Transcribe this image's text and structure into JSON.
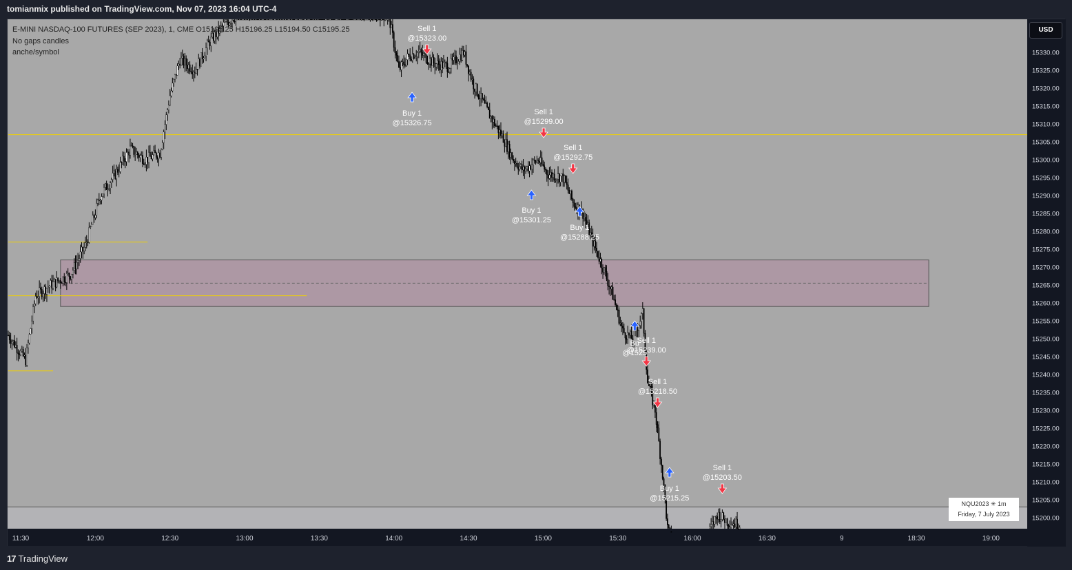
{
  "header": {
    "published_line": "tomianmix published on TradingView.com, Nov 07, 2023 16:04 UTC-4"
  },
  "legend": {
    "line1": "E-MINI NASDAQ-100 FUTURES (SEP 2023), 1, CME  O15195.25  H15196.25  L15194.50  C15195.25",
    "line2": "No gaps candles",
    "line3": "anche/symbol"
  },
  "currency_badge": "USD",
  "info_box": {
    "symbol": "NQU2023 ✳ 1m",
    "date": "Friday, 7 July 2023"
  },
  "footer": {
    "logo_mark": "17",
    "brand": "TradingView"
  },
  "colors": {
    "plot_bg": "#a8a8a8",
    "candle": "#000000",
    "buy_arrow": "#2962ff",
    "sell_arrow": "#f23645",
    "level_line": "#f0d000",
    "zone_fill": "#b08aa0"
  },
  "chart_data": {
    "type": "candlestick",
    "symbol": "E-MINI NASDAQ-100 FUTURES (SEP 2023)",
    "interval": "1",
    "ylim": [
      15195,
      15340
    ],
    "y_ticks": [
      15200,
      15205,
      15210,
      15215,
      15220,
      15225,
      15230,
      15235,
      15240,
      15245,
      15250,
      15255,
      15260,
      15265,
      15270,
      15275,
      15280,
      15285,
      15290,
      15295,
      15300,
      15305,
      15310,
      15315,
      15320,
      15325,
      15330
    ],
    "y_tick_labels": [
      "15200.00",
      "15205.00",
      "15210.00",
      "15215.00",
      "15220.00",
      "15225.00",
      "15230.00",
      "15235.00",
      "15240.00",
      "15245.00",
      "15250.00",
      "15255.00",
      "15260.00",
      "15265.00",
      "15270.00",
      "15275.00",
      "15280.00",
      "15285.00",
      "15290.00",
      "15295.00",
      "15300.00",
      "15305.00",
      "15310.00",
      "15315.00",
      "15320.00",
      "15325.00",
      "15330.00"
    ],
    "x_range_minutes": [
      685,
      1160
    ],
    "x_ticks": [
      {
        "t": 690,
        "label": "11:30"
      },
      {
        "t": 720,
        "label": "12:00"
      },
      {
        "t": 750,
        "label": "12:30"
      },
      {
        "t": 780,
        "label": "13:00"
      },
      {
        "t": 810,
        "label": "13:30"
      },
      {
        "t": 840,
        "label": "14:00"
      },
      {
        "t": 870,
        "label": "14:30"
      },
      {
        "t": 900,
        "label": "15:00"
      },
      {
        "t": 930,
        "label": "15:30"
      },
      {
        "t": 960,
        "label": "16:00"
      },
      {
        "t": 990,
        "label": "16:30"
      },
      {
        "t": 1020,
        "label": "9"
      },
      {
        "t": 1050,
        "label": "18:30"
      },
      {
        "t": 1080,
        "label": "19:00"
      }
    ],
    "price_path": [
      [
        685,
        15251
      ],
      [
        692,
        15244
      ],
      [
        696,
        15262
      ],
      [
        702,
        15265
      ],
      [
        710,
        15268
      ],
      [
        716,
        15276
      ],
      [
        722,
        15290
      ],
      [
        728,
        15296
      ],
      [
        734,
        15303
      ],
      [
        740,
        15300
      ],
      [
        746,
        15302
      ],
      [
        750,
        15318
      ],
      [
        754,
        15328
      ],
      [
        760,
        15325
      ],
      [
        766,
        15333
      ],
      [
        772,
        15338
      ],
      [
        780,
        15342
      ],
      [
        788,
        15343
      ],
      [
        800,
        15345
      ],
      [
        810,
        15344
      ],
      [
        820,
        15343
      ],
      [
        832,
        15341
      ],
      [
        838,
        15340
      ],
      [
        842,
        15325
      ],
      [
        846,
        15329
      ],
      [
        850,
        15330
      ],
      [
        856,
        15327
      ],
      [
        862,
        15326
      ],
      [
        868,
        15330
      ],
      [
        872,
        15321
      ],
      [
        878,
        15313
      ],
      [
        884,
        15306
      ],
      [
        888,
        15300
      ],
      [
        892,
        15297
      ],
      [
        898,
        15300
      ],
      [
        902,
        15296
      ],
      [
        908,
        15295
      ],
      [
        912,
        15288
      ],
      [
        916,
        15285
      ],
      [
        920,
        15277
      ],
      [
        924,
        15270
      ],
      [
        928,
        15262
      ],
      [
        932,
        15252
      ],
      [
        936,
        15250
      ],
      [
        940,
        15257
      ],
      [
        942,
        15238
      ],
      [
        945,
        15230
      ],
      [
        948,
        15212
      ],
      [
        950,
        15197
      ],
      [
        954,
        15188
      ],
      [
        962,
        15185
      ],
      [
        966,
        15195
      ],
      [
        970,
        15201
      ],
      [
        974,
        15199
      ],
      [
        979,
        15198
      ]
    ],
    "levels": [
      {
        "price": 15307,
        "t_start": 685,
        "t_end": 1160
      },
      {
        "price": 15277,
        "t_start": 685,
        "t_end": 741
      },
      {
        "price": 15262,
        "t_start": 685,
        "t_end": 805
      },
      {
        "price": 15241,
        "t_start": 685,
        "t_end": 703
      }
    ],
    "zone": {
      "price_top": 15272,
      "price_bottom": 15259,
      "mid": 15265.5,
      "t_start": 706,
      "t_end": 1055
    },
    "session_line": {
      "price": 15203
    },
    "trades": [
      {
        "side": "sell",
        "label": "Sell 1",
        "price": "@15323.00",
        "t": 853.3
      },
      {
        "side": "buy",
        "label": "Buy 1",
        "price": "@15326.75",
        "t": 847.3
      },
      {
        "side": "sell",
        "label": "Sell 1",
        "price": "@15299.00",
        "t": 900.2
      },
      {
        "side": "sell",
        "label": "Sell 1",
        "price": "@15292.75",
        "t": 912.0
      },
      {
        "side": "buy",
        "label": "Buy 1",
        "price": "@15301.25",
        "t": 895.3
      },
      {
        "side": "buy",
        "label": "Buy 1",
        "price": "@15288.25",
        "t": 914.7
      },
      {
        "side": "buy",
        "label": "Bu",
        "price": "@1525",
        "t": 936.8
      },
      {
        "side": "sell",
        "label": "Sell 1",
        "price": "@15239.00",
        "t": 941.5
      },
      {
        "side": "sell",
        "label": "Sell 1",
        "price": "@15218.50",
        "t": 946.0
      },
      {
        "side": "buy",
        "label": "Buy 1",
        "price": "@15215.25",
        "t": 950.8
      },
      {
        "side": "sell",
        "label": "Sell 1",
        "price": "@15203.50",
        "t": 972.0
      }
    ]
  }
}
